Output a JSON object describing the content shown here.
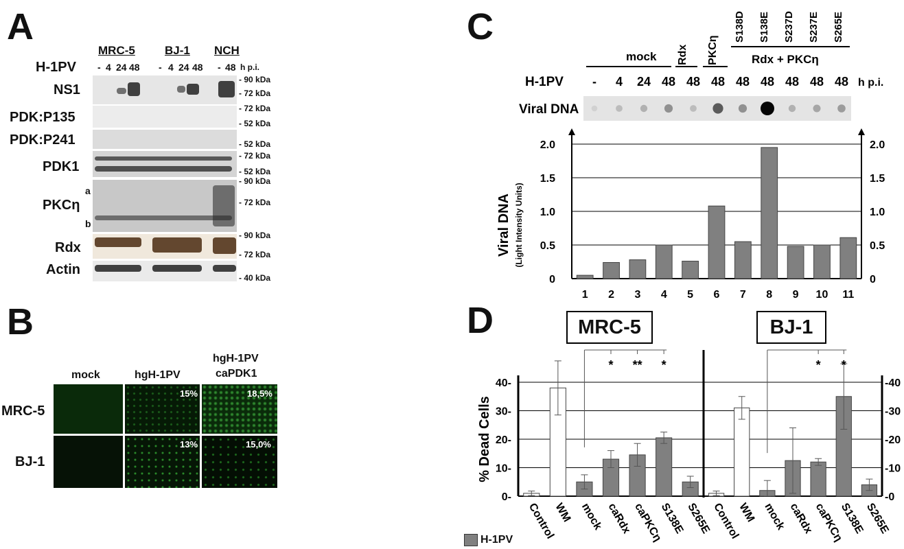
{
  "panels": {
    "a": "A",
    "b": "B",
    "c": "C",
    "d": "D"
  },
  "panel_a": {
    "cell_lines": [
      "MRC-5",
      "BJ-1",
      "NCH"
    ],
    "infection_label": "H-1PV",
    "hpi_label": "h p.i.",
    "timepoints": [
      {
        "lane": "-",
        "group": 0
      },
      {
        "lane": "4",
        "group": 0
      },
      {
        "lane": "24",
        "group": 0
      },
      {
        "lane": "48",
        "group": 0
      },
      {
        "lane": "-",
        "group": 1
      },
      {
        "lane": "4",
        "group": 1
      },
      {
        "lane": "24",
        "group": 1
      },
      {
        "lane": "48",
        "group": 1
      },
      {
        "lane": "-",
        "group": 2
      },
      {
        "lane": "48",
        "group": 2
      }
    ],
    "rows": [
      {
        "label": "NS1",
        "markers": [
          "90 kDa",
          "72 kDa"
        ]
      },
      {
        "label": "PDK:P135",
        "markers": [
          "72 kDa",
          "52 kDa"
        ]
      },
      {
        "label": "PDK:P241",
        "markers": [
          "52 kDa"
        ]
      },
      {
        "label": "PDK1",
        "markers": [
          "72 kDa",
          "52 kDa"
        ]
      },
      {
        "label": "PKCη",
        "markers": [
          "90 kDa",
          "72 kDa"
        ],
        "sub": [
          "a",
          "b"
        ]
      },
      {
        "label": "Rdx",
        "markers": [
          "90 kDa",
          "72 kDa"
        ]
      },
      {
        "label": "Actin",
        "markers": [
          "40 kDa"
        ]
      }
    ]
  },
  "panel_b": {
    "columns": [
      "mock",
      "hgH-1PV",
      "hgH-1PV\ncaPDK1"
    ],
    "col3_lines": [
      "hgH-1PV",
      "caPDK1"
    ],
    "rows": [
      {
        "label": "MRC-5",
        "percents": [
          "",
          "15%",
          "18,5%"
        ]
      },
      {
        "label": "BJ-1",
        "percents": [
          "",
          "13%",
          "15,0%"
        ]
      }
    ]
  },
  "panel_c": {
    "groups": {
      "mock": "mock",
      "rdx": "Rdx",
      "pkc": "PKCη",
      "combo": "Rdx + PKCη"
    },
    "mutants": [
      "S138D",
      "S138E",
      "S237D",
      "S237E",
      "S265E"
    ],
    "infection_label": "H-1PV",
    "hpi_label": "h p.i.",
    "hpi_values": [
      "-",
      "4",
      "24",
      "48",
      "48",
      "48",
      "48",
      "48",
      "48",
      "48",
      "48"
    ],
    "dot_blot_label": "Viral DNA",
    "dot_intensity": [
      0.05,
      0.15,
      0.2,
      0.35,
      0.15,
      0.6,
      0.35,
      1.0,
      0.2,
      0.25,
      0.3
    ]
  },
  "panel_d": {
    "boxes": [
      "MRC-5",
      "BJ-1"
    ],
    "legend": "H-1PV",
    "sig_mrc5": [
      "*",
      "**",
      "*"
    ],
    "sig_bj1": [
      "*",
      "*"
    ]
  },
  "chart_data": [
    {
      "type": "bar",
      "ylabel": "Viral DNA",
      "ylabel_sub": "(Light Intensity Units)",
      "categories": [
        "1",
        "2",
        "3",
        "4",
        "5",
        "6",
        "7",
        "8",
        "9",
        "10",
        "11"
      ],
      "values": [
        0.05,
        0.24,
        0.28,
        0.5,
        0.26,
        1.08,
        0.55,
        1.95,
        0.48,
        0.5,
        0.61
      ],
      "ylim": [
        0,
        2.0
      ],
      "yticks": [
        "0",
        "0.5",
        "1.0",
        "1.5",
        "2.0"
      ],
      "grid": true,
      "color": "#808080"
    },
    {
      "type": "bar",
      "ylabel": "% Dead Cells",
      "ylim": [
        0,
        40
      ],
      "yticks_left": [
        "0",
        "10",
        "20",
        "30",
        "40"
      ],
      "yticks_right": [
        "-0",
        "-10",
        "-20",
        "-30",
        "-40"
      ],
      "groups": [
        {
          "name": "MRC-5",
          "categories": [
            "Control",
            "WM",
            "mock",
            "caRdx",
            "caPKCη",
            "S138E",
            "S265E"
          ],
          "values": [
            1,
            38,
            5,
            13,
            14.5,
            20.5,
            5
          ],
          "errors": [
            0.8,
            9.5,
            2.5,
            3,
            4,
            2,
            2
          ],
          "infected": [
            false,
            false,
            true,
            true,
            true,
            true,
            true
          ]
        },
        {
          "name": "BJ-1",
          "categories": [
            "Control",
            "WM",
            "mock",
            "caRdx",
            "caPKCη",
            "S138E",
            "S265E"
          ],
          "values": [
            1,
            31,
            2,
            12.5,
            12,
            35,
            4
          ],
          "errors": [
            0.8,
            4,
            3.5,
            11.5,
            1.2,
            11.5,
            2
          ],
          "infected": [
            false,
            false,
            true,
            true,
            true,
            true,
            true
          ]
        }
      ],
      "legend": [
        "H-1PV"
      ],
      "colors": {
        "infected": "#808080",
        "uninfected": "#ffffff"
      }
    }
  ]
}
